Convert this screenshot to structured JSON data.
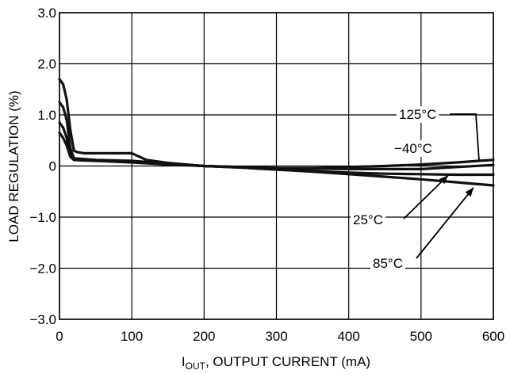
{
  "chart_data": {
    "type": "line",
    "xlabel_prefix": "I",
    "xlabel_sub": "OUT",
    "xlabel_rest": ", OUTPUT CURRENT (mA)",
    "ylabel": "LOAD REGULATION (%)",
    "xlim": [
      0,
      600
    ],
    "ylim": [
      -3.0,
      3.0
    ],
    "xticks": [
      0,
      100,
      200,
      300,
      400,
      500,
      600
    ],
    "xtick_labels": [
      "0",
      "100",
      "200",
      "300",
      "400",
      "500",
      "600"
    ],
    "yticks": [
      3.0,
      2.0,
      1.0,
      0,
      -1.0,
      -2.0,
      -3.0
    ],
    "ytick_labels": [
      "3.0",
      "2.0",
      "1.0",
      "0",
      "−1.0",
      "−2.0",
      "−3.0"
    ],
    "grid": true,
    "series": [
      {
        "name": "125°C",
        "x": [
          0,
          5,
          10,
          15,
          20,
          25,
          35,
          60,
          100,
          120,
          150,
          200,
          250,
          300,
          350,
          400,
          450,
          500,
          550,
          580,
          600
        ],
        "y": [
          1.7,
          1.6,
          1.3,
          0.7,
          0.3,
          0.27,
          0.25,
          0.25,
          0.25,
          0.12,
          0.06,
          0.0,
          -0.02,
          -0.04,
          -0.04,
          -0.02,
          0.0,
          0.03,
          0.07,
          0.1,
          0.12
        ]
      },
      {
        "name": "−40°C",
        "x": [
          0,
          5,
          10,
          15,
          20,
          30,
          50,
          100,
          150,
          200,
          250,
          300,
          350,
          400,
          450,
          500,
          550,
          600
        ],
        "y": [
          1.25,
          1.15,
          0.9,
          0.35,
          0.15,
          0.14,
          0.12,
          0.1,
          0.05,
          0.0,
          -0.02,
          -0.04,
          -0.05,
          -0.06,
          -0.06,
          -0.06,
          -0.02,
          0.02
        ]
      },
      {
        "name": "25°C",
        "x": [
          0,
          5,
          10,
          15,
          20,
          30,
          50,
          100,
          150,
          200,
          250,
          300,
          350,
          400,
          450,
          500,
          550,
          600
        ],
        "y": [
          0.85,
          0.75,
          0.55,
          0.2,
          0.12,
          0.12,
          0.1,
          0.08,
          0.04,
          0.0,
          -0.03,
          -0.07,
          -0.1,
          -0.13,
          -0.15,
          -0.16,
          -0.17,
          -0.17
        ]
      },
      {
        "name": "85°C",
        "x": [
          0,
          5,
          10,
          15,
          20,
          30,
          50,
          100,
          150,
          200,
          250,
          300,
          350,
          400,
          450,
          500,
          550,
          600
        ],
        "y": [
          0.65,
          0.55,
          0.4,
          0.18,
          0.12,
          0.11,
          0.1,
          0.07,
          0.03,
          0.0,
          -0.03,
          -0.07,
          -0.11,
          -0.16,
          -0.21,
          -0.26,
          -0.32,
          -0.38
        ]
      }
    ],
    "annotations": [
      {
        "label": "125°C",
        "series": "125°C"
      },
      {
        "label": "−40°C",
        "series": "−40°C"
      },
      {
        "label": "25°C",
        "series": "25°C"
      },
      {
        "label": "85°C",
        "series": "85°C"
      }
    ]
  }
}
